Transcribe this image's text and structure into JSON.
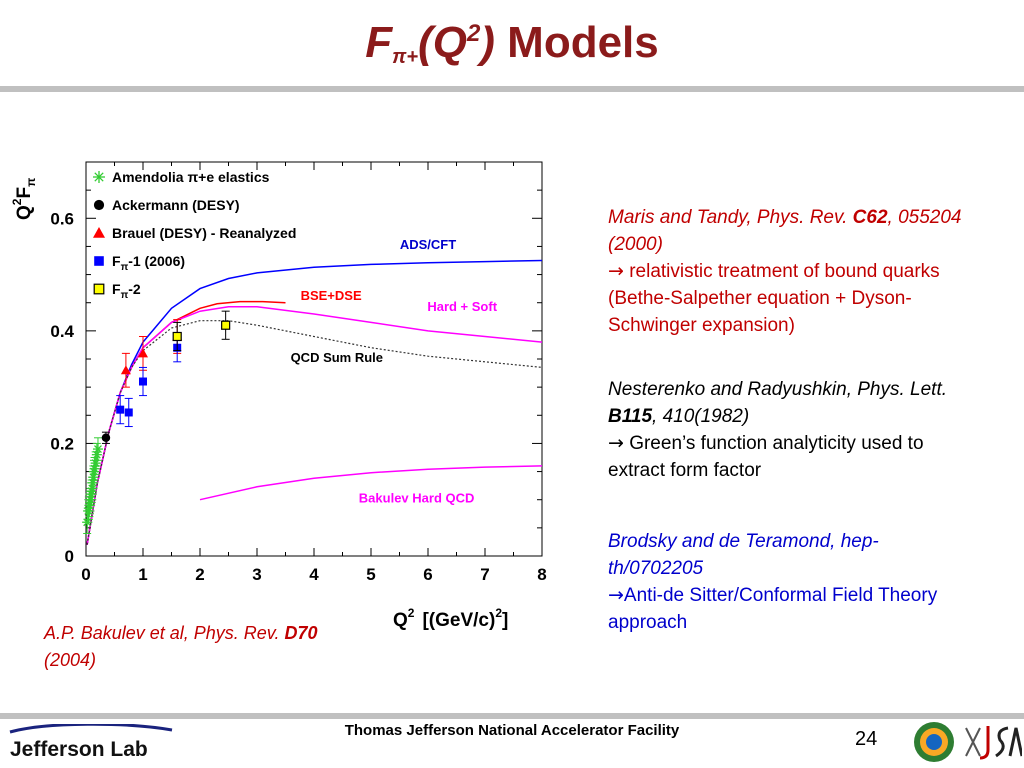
{
  "title": {
    "f": "F",
    "sub": "π+",
    "q": "(Q",
    "sup": "2",
    "close": ")",
    "rest": " Models"
  },
  "references": [
    {
      "cite_pre": "Maris and Tandy, Phys. Rev. ",
      "cite_bold": "C62",
      "cite_post": ", 055204 (2000)",
      "arrow": "→",
      "note": " relativistic treatment of bound quarks (Bethe-Salpether equation + Dyson-Schwinger expansion)"
    },
    {
      "cite_pre": "Nesterenko and Radyushkin, Phys. Lett. ",
      "cite_bold": "B115",
      "cite_post": ", 410(1982)",
      "arrow": "→",
      "note": " Green’s function analyticity used to extract form factor"
    },
    {
      "cite_pre": "Brodsky and de Teramond, hep-th/0702205",
      "arrow": "→",
      "note": "Anti-de Sitter/Conformal Field Theory approach"
    }
  ],
  "bakulev_ref": {
    "pre": "A.P. Bakulev et al, Phys. Rev. ",
    "bold": "D70",
    "post": "(2004)"
  },
  "footer": {
    "center": "Thomas Jefferson National Accelerator Facility",
    "page": "24",
    "logo_text": "Jefferson Lab"
  },
  "chart_data": {
    "type": "line",
    "xlabel": "Q",
    "xlabel_sup": "2",
    "xlabel_units": "[(GeV/c)",
    "xlabel_units_sup": "2",
    "xlabel_units_close": "]",
    "ylabel": "Q",
    "ylabel_sup": "2",
    "ylabel_main": "F",
    "ylabel_sub": "π",
    "xlim": [
      0,
      8
    ],
    "ylim": [
      0,
      0.7
    ],
    "xticks": [
      "0",
      "1",
      "2",
      "3",
      "4",
      "5",
      "6",
      "7",
      "8"
    ],
    "yticks": [
      {
        "v": 0,
        "label": "0"
      },
      {
        "v": 0.2,
        "label": "0.2"
      },
      {
        "v": 0.4,
        "label": "0.4"
      },
      {
        "v": 0.6,
        "label": "0.6"
      }
    ],
    "legend_position": "top-left",
    "legend": [
      {
        "label": "Amendolia π+e elastics",
        "color": "#33cc33",
        "marker": "star"
      },
      {
        "label": "Ackermann (DESY)",
        "color": "#000000",
        "marker": "circle"
      },
      {
        "label": "Brauel (DESY) - Reanalyzed",
        "color": "#ff0000",
        "marker": "triangle"
      },
      {
        "label": "F",
        "sub": "π",
        "suffix": "-1 (2006)",
        "color": "#0000ff",
        "marker": "square"
      },
      {
        "label": "F",
        "sub": "π",
        "suffix": "-2",
        "color": "#ffff00",
        "marker": "square-open"
      }
    ],
    "curves": [
      {
        "name": "ADS/CFT",
        "color": "#0000ff",
        "dash": "",
        "label_color": "#0000cc",
        "x": [
          0.02,
          0.2,
          0.4,
          0.6,
          0.8,
          1.0,
          1.5,
          2.0,
          2.5,
          3.0,
          4.0,
          5.0,
          6.0,
          7.0,
          8.0
        ],
        "y": [
          0.02,
          0.13,
          0.22,
          0.29,
          0.34,
          0.38,
          0.44,
          0.475,
          0.493,
          0.503,
          0.513,
          0.518,
          0.521,
          0.523,
          0.525
        ]
      },
      {
        "name": "BSE+DSE",
        "color": "#ff0000",
        "dash": "",
        "label_color": "#ff0000",
        "x": [
          0.02,
          0.2,
          0.4,
          0.6,
          0.8,
          1.0,
          1.5,
          2.0,
          2.3,
          2.7,
          3.1,
          3.5
        ],
        "y": [
          0.02,
          0.13,
          0.22,
          0.29,
          0.335,
          0.37,
          0.415,
          0.44,
          0.448,
          0.452,
          0.452,
          0.45
        ]
      },
      {
        "name": "Hard + Soft",
        "color": "#ff00ff",
        "dash": "",
        "label_color": "#ff00ff",
        "x": [
          0.02,
          0.2,
          0.4,
          0.6,
          0.8,
          1.0,
          1.5,
          2.0,
          2.5,
          3.0,
          4.0,
          5.0,
          6.0,
          7.0,
          8.0
        ],
        "y": [
          0.02,
          0.13,
          0.22,
          0.29,
          0.335,
          0.37,
          0.415,
          0.435,
          0.443,
          0.443,
          0.43,
          0.415,
          0.4,
          0.39,
          0.38
        ]
      },
      {
        "name": "QCD Sum Rule",
        "color": "#333333",
        "dash": "2,2",
        "label_color": "#000000",
        "x": [
          0.02,
          0.2,
          0.4,
          0.6,
          0.8,
          1.0,
          1.5,
          2.0,
          2.5,
          3.0,
          4.0,
          5.0,
          6.0,
          7.0,
          8.0
        ],
        "y": [
          0.02,
          0.13,
          0.22,
          0.29,
          0.335,
          0.365,
          0.405,
          0.418,
          0.418,
          0.41,
          0.39,
          0.37,
          0.355,
          0.345,
          0.335
        ]
      },
      {
        "name": "Bakulev Hard QCD",
        "color": "#ff00ff",
        "dash": "",
        "label_color": "#ff00ff",
        "x": [
          2.0,
          3.0,
          4.0,
          5.0,
          6.0,
          7.0,
          8.0
        ],
        "y": [
          0.1,
          0.123,
          0.138,
          0.148,
          0.154,
          0.158,
          0.16
        ]
      }
    ],
    "curve_labels": [
      {
        "name": "ADS/CFT",
        "x": 6.0,
        "y": 0.545,
        "color": "#0000cc"
      },
      {
        "name": "BSE+DSE",
        "x": 4.3,
        "y": 0.455,
        "color": "#ff0000"
      },
      {
        "name": "Hard + Soft",
        "x": 6.6,
        "y": 0.435,
        "color": "#ff00ff"
      },
      {
        "name": "QCD Sum Rule",
        "x": 4.4,
        "y": 0.345,
        "color": "#000000"
      },
      {
        "name": "Bakulev Hard QCD",
        "x": 5.8,
        "y": 0.095,
        "color": "#ff00ff"
      }
    ],
    "series": [
      {
        "name": "Amendolia π+e elastics",
        "marker": "star",
        "color": "#33cc33",
        "points": [
          [
            0.02,
            0.06
          ],
          [
            0.04,
            0.08
          ],
          [
            0.05,
            0.085
          ],
          [
            0.06,
            0.09
          ],
          [
            0.07,
            0.095
          ],
          [
            0.08,
            0.1
          ],
          [
            0.09,
            0.11
          ],
          [
            0.1,
            0.115
          ],
          [
            0.11,
            0.12
          ],
          [
            0.12,
            0.13
          ],
          [
            0.13,
            0.14
          ],
          [
            0.14,
            0.15
          ],
          [
            0.15,
            0.155
          ],
          [
            0.17,
            0.165
          ],
          [
            0.19,
            0.18
          ],
          [
            0.21,
            0.19
          ]
        ],
        "err": 0.02
      },
      {
        "name": "Ackermann (DESY)",
        "marker": "circle",
        "color": "#000000",
        "points": [
          [
            0.35,
            0.21
          ]
        ],
        "err": 0.01
      },
      {
        "name": "Brauel (DESY) - Reanalyzed",
        "marker": "triangle",
        "color": "#ff0000",
        "points": [
          [
            0.7,
            0.33
          ],
          [
            1.0,
            0.36
          ],
          [
            1.6,
            0.39
          ]
        ],
        "err": 0.03
      },
      {
        "name": "Fπ-1 (2006)",
        "marker": "square",
        "color": "#0000ff",
        "points": [
          [
            0.6,
            0.26
          ],
          [
            0.75,
            0.255
          ],
          [
            1.0,
            0.31
          ],
          [
            1.6,
            0.37
          ]
        ],
        "err": 0.025
      },
      {
        "name": "Fπ-2",
        "marker": "square-open",
        "color": "#ffff00",
        "points": [
          [
            1.6,
            0.39
          ],
          [
            2.45,
            0.41
          ]
        ],
        "err": 0.025
      }
    ]
  }
}
